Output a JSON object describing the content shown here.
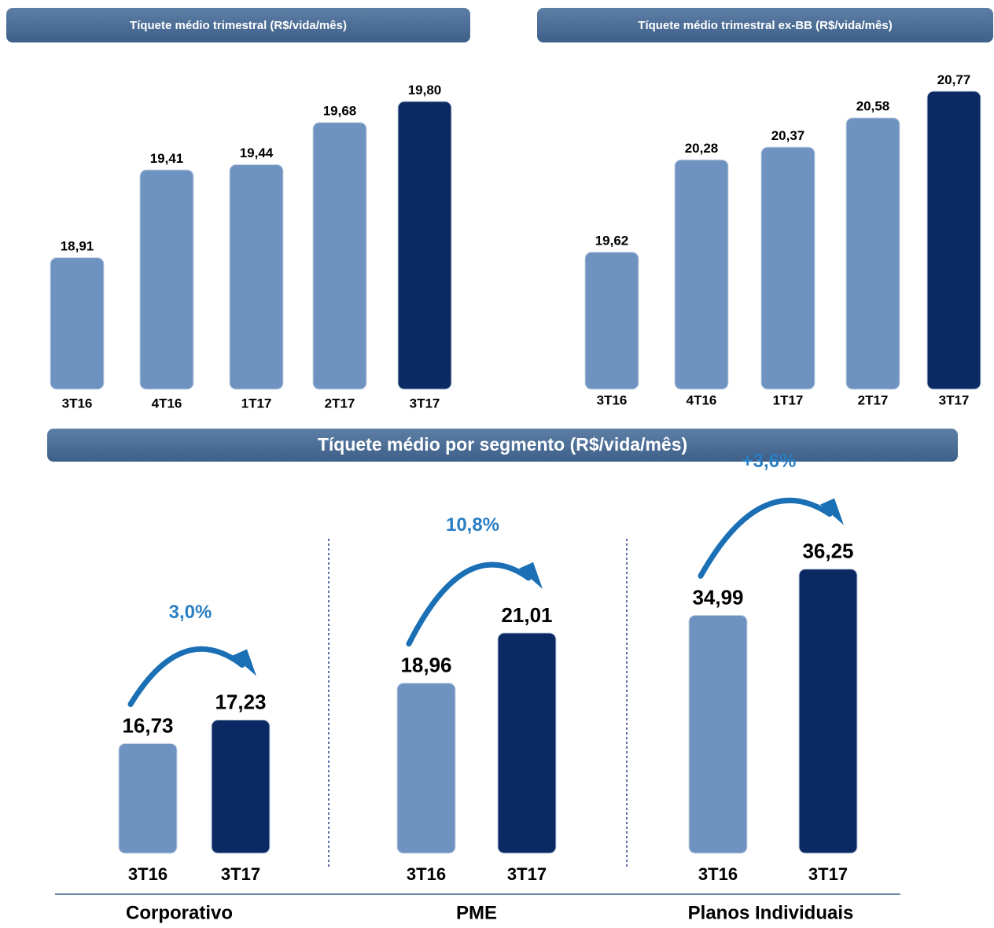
{
  "section_title": "Tíquete médio por segmento (R$/vida/mês)",
  "chart_data": [
    {
      "type": "bar",
      "title": "Tíquete médio trimestral (R$/vida/mês)",
      "categories": [
        "3T16",
        "4T16",
        "1T17",
        "2T17",
        "3T17"
      ],
      "values": [
        18.91,
        19.41,
        19.44,
        19.68,
        19.8
      ],
      "value_labels": [
        "18,91",
        "19,41",
        "19,44",
        "19,68",
        "19,80"
      ],
      "colors": [
        "#6f93c0",
        "#6f93c0",
        "#6f93c0",
        "#6f93c0",
        "#0b2a63"
      ],
      "ylim": [
        18.16,
        19.93
      ]
    },
    {
      "type": "bar",
      "title": "Tíquete médio trimestral ex-BB (R$/vida/mês)",
      "categories": [
        "3T16",
        "4T16",
        "1T17",
        "2T17",
        "3T17"
      ],
      "values": [
        19.62,
        20.28,
        20.37,
        20.58,
        20.77
      ],
      "value_labels": [
        "19,62",
        "20,28",
        "20,37",
        "20,58",
        "20,77"
      ],
      "colors": [
        "#6f93c0",
        "#6f93c0",
        "#6f93c0",
        "#6f93c0",
        "#0b2a63"
      ],
      "ylim": [
        18.64,
        20.86
      ]
    },
    {
      "type": "bar",
      "xlabel": "Corporativo",
      "annotation": "3,0%",
      "categories": [
        "3T16",
        "3T17"
      ],
      "values": [
        16.73,
        17.23
      ],
      "value_labels": [
        "16,73",
        "17,23"
      ],
      "colors": [
        "#6f93c0",
        "#0b2a63"
      ],
      "ylim": [
        14.4,
        22.5
      ]
    },
    {
      "type": "bar",
      "xlabel": "PME",
      "annotation": "10,8%",
      "categories": [
        "3T16",
        "3T17"
      ],
      "values": [
        18.96,
        21.01
      ],
      "value_labels": [
        "18,96",
        "21,01"
      ],
      "colors": [
        "#6f93c0",
        "#0b2a63"
      ],
      "ylim": [
        12.0,
        27.6
      ]
    },
    {
      "type": "bar",
      "xlabel": "Planos Individuais",
      "annotation": "+3,6%",
      "categories": [
        "3T16",
        "3T17"
      ],
      "values": [
        34.99,
        36.25
      ],
      "value_labels": [
        "34,99",
        "36,25"
      ],
      "colors": [
        "#6f93c0",
        "#0b2a63"
      ],
      "ylim": [
        28.5,
        38.9
      ]
    }
  ]
}
